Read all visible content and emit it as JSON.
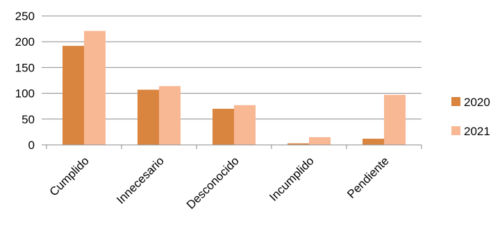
{
  "chart_data": {
    "type": "bar",
    "categories": [
      "Cumplido",
      "Innecesario",
      "Desconocido",
      "Incumplido",
      "Pendiente"
    ],
    "series": [
      {
        "name": "2020",
        "values": [
          192,
          107,
          70,
          3,
          12
        ],
        "color": "#D9843F"
      },
      {
        "name": "2021",
        "values": [
          221,
          114,
          77,
          15,
          97
        ],
        "color": "#F9B894"
      }
    ],
    "ylim": [
      0,
      250
    ],
    "yticks": [
      0,
      50,
      100,
      150,
      200,
      250
    ],
    "grid": true,
    "legend_position": "right",
    "title": "",
    "xlabel": "",
    "ylabel": ""
  }
}
